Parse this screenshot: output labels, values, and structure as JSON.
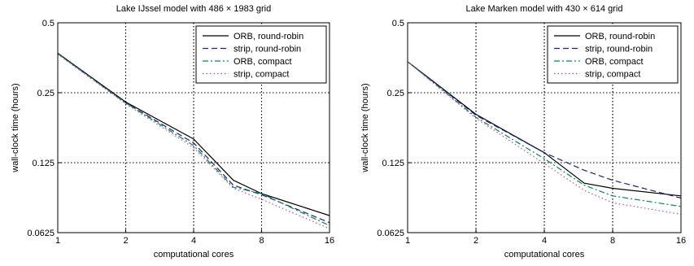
{
  "chart_data": [
    {
      "type": "line",
      "title": "Lake IJssel model with 486 × 1983 grid",
      "xlabel": "computational cores",
      "ylabel": "wall-clock time (hours)",
      "xscale": "log2",
      "yscale": "log2",
      "xlim": [
        1,
        16
      ],
      "ylim": [
        0.0625,
        0.5
      ],
      "xticks": [
        1,
        2,
        4,
        8,
        16
      ],
      "xtick_labels": [
        "1",
        "2",
        "4",
        "8",
        "16"
      ],
      "yticks": [
        0.0625,
        0.125,
        0.25,
        0.5
      ],
      "ytick_labels": [
        "0.0625",
        "0.125",
        "0.25",
        "0.5"
      ],
      "grid": true,
      "legend_position": "top-right",
      "series": [
        {
          "name": "ORB, round-robin",
          "color": "#000000",
          "dash": "solid",
          "x": [
            1,
            2,
            4,
            6,
            8,
            16
          ],
          "y": [
            0.37,
            0.228,
            0.158,
            0.105,
            0.092,
            0.074
          ]
        },
        {
          "name": "strip, round-robin",
          "color": "#1f1f8f",
          "dash": "dashed",
          "x": [
            1,
            2,
            4,
            6,
            8,
            16
          ],
          "y": [
            0.368,
            0.226,
            0.152,
            0.1,
            0.091,
            0.069
          ]
        },
        {
          "name": "ORB, compact",
          "color": "#008a5a",
          "dash": "dashdot",
          "x": [
            1,
            2,
            4,
            6,
            8,
            16
          ],
          "y": [
            0.368,
            0.226,
            0.148,
            0.098,
            0.092,
            0.067
          ]
        },
        {
          "name": "strip, compact",
          "color": "#e0408a",
          "dash": "dotted",
          "x": [
            1,
            2,
            4,
            6,
            8,
            16
          ],
          "y": [
            0.366,
            0.224,
            0.145,
            0.097,
            0.087,
            0.065
          ]
        }
      ]
    },
    {
      "type": "line",
      "title": "Lake Marken model with 430 × 614 grid",
      "xlabel": "computational cores",
      "ylabel": "wall-clock time (hours)",
      "xscale": "log2",
      "yscale": "log2",
      "xlim": [
        1,
        16
      ],
      "ylim": [
        0.0625,
        0.5
      ],
      "xticks": [
        1,
        2,
        4,
        8,
        16
      ],
      "xtick_labels": [
        "1",
        "2",
        "4",
        "8",
        "16"
      ],
      "yticks": [
        0.0625,
        0.125,
        0.25,
        0.5
      ],
      "ytick_labels": [
        "0.0625",
        "0.125",
        "0.25",
        "0.5"
      ],
      "grid": true,
      "legend_position": "top-right",
      "series": [
        {
          "name": "ORB, round-robin",
          "color": "#000000",
          "dash": "solid",
          "x": [
            1,
            2,
            4,
            6,
            8,
            16
          ],
          "y": [
            0.34,
            0.202,
            0.138,
            0.102,
            0.097,
            0.09
          ]
        },
        {
          "name": "strip, round-robin",
          "color": "#1f1f8f",
          "dash": "dashed",
          "x": [
            1,
            2,
            4,
            6,
            8,
            16
          ],
          "y": [
            0.34,
            0.2,
            0.138,
            0.116,
            0.105,
            0.088
          ]
        },
        {
          "name": "ORB, compact",
          "color": "#008a5a",
          "dash": "dashdot",
          "x": [
            1,
            2,
            4,
            6,
            8,
            16
          ],
          "y": [
            0.34,
            0.196,
            0.13,
            0.1,
            0.09,
            0.081
          ]
        },
        {
          "name": "strip, compact",
          "color": "#e0408a",
          "dash": "dotted",
          "x": [
            1,
            2,
            4,
            6,
            8,
            16
          ],
          "y": [
            0.34,
            0.194,
            0.124,
            0.095,
            0.084,
            0.075
          ]
        }
      ]
    }
  ]
}
